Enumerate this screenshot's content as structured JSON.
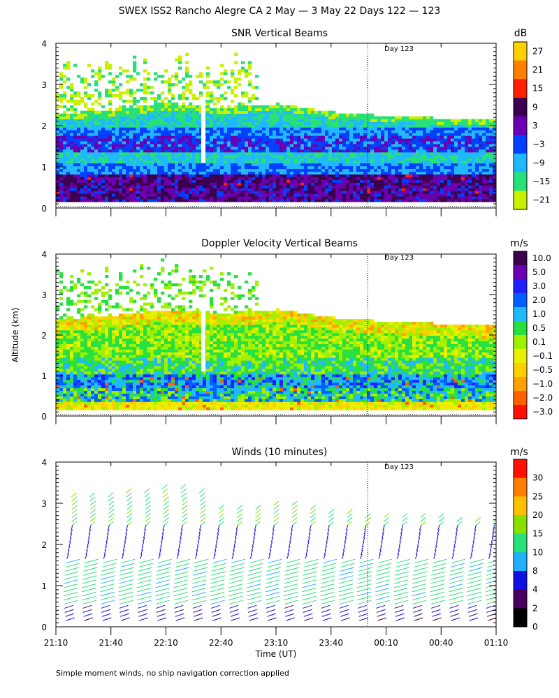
{
  "chart_data": {
    "type": "heatmap",
    "title": "SWEX ISS2 Rancho Alegre CA    2 May —   3 May 22 Days 122 — 123",
    "xlabel": "Time (UT)",
    "ylabel": "Altitude (km)",
    "x_ticks": [
      "21:10",
      "21:40",
      "22:10",
      "22:40",
      "23:10",
      "23:40",
      "00:10",
      "00:40",
      "01:10"
    ],
    "x_range_minutes": [
      0,
      240
    ],
    "day_boundary_minutes": 170,
    "y_ticks": [
      "0",
      "1",
      "2",
      "3",
      "4"
    ],
    "ylim": [
      0,
      4
    ],
    "footnote": "Simple moment winds, no ship navigation correction applied",
    "panels": [
      {
        "type": "heatmap",
        "title": "SNR Vertical Beams",
        "annotation": "Day 123",
        "colorbar": {
          "units": "dB",
          "labels": [
            "27",
            "21",
            "15",
            "9",
            "3",
            "−3",
            "−9",
            "−15",
            "−21"
          ],
          "colors": [
            "#ffd000",
            "#ff7f00",
            "#ff2000",
            "#3c0050",
            "#6a00b0",
            "#0040ff",
            "#20b8ff",
            "#28e078",
            "#c8f000"
          ]
        },
        "top_height_km": [
          2.25,
          2.35,
          2.5,
          2.4,
          2.5,
          2.3,
          2.2,
          2.15,
          2.1
        ],
        "top_height_time_minutes": [
          0,
          30,
          60,
          90,
          120,
          150,
          180,
          210,
          240
        ]
      },
      {
        "type": "heatmap",
        "title": "Doppler Velocity Vertical Beams",
        "annotation": "Day 123",
        "colorbar": {
          "units": "m/s",
          "labels": [
            "10.0",
            "5.0",
            "3.0",
            "2.0",
            "1.0",
            "0.5",
            "0.1",
            "−0.1",
            "−0.5",
            "−1.0",
            "−2.0",
            "−3.0"
          ],
          "colors": [
            "#3c0050",
            "#6a00b0",
            "#2020ff",
            "#0060ff",
            "#20b8ff",
            "#28e040",
            "#a0f000",
            "#e8f000",
            "#ffd000",
            "#ffa000",
            "#ff6000",
            "#ff1000"
          ]
        }
      },
      {
        "type": "barbs",
        "title": "Winds (10 minutes)",
        "annotation": "Day 123",
        "colorbar": {
          "units": "m/s",
          "labels": [
            "30",
            "25",
            "20",
            "15",
            "10",
            "8",
            "4",
            "2",
            "0"
          ],
          "colors": [
            "#ff1000",
            "#ff7f00",
            "#ffc000",
            "#88e000",
            "#28e078",
            "#20b0ff",
            "#1010e0",
            "#4a0060",
            "#000000"
          ]
        },
        "profile_time_minutes": [
          5,
          15,
          25,
          35,
          45,
          55,
          65,
          75,
          85,
          95,
          105,
          115,
          125,
          135,
          145,
          155,
          165,
          175,
          185,
          195,
          205,
          215,
          225,
          235
        ]
      }
    ]
  }
}
